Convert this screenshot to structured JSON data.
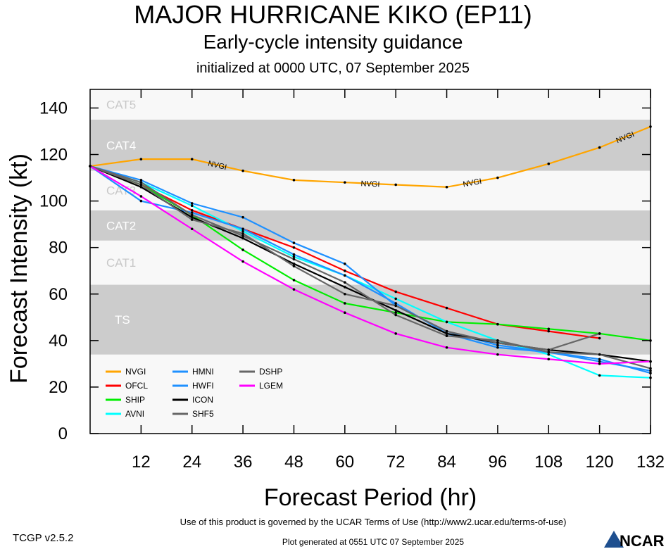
{
  "title": "MAJOR HURRICANE KIKO (EP11)",
  "subtitle": "Early-cycle intensity guidance",
  "init": "initialized at 0000 UTC, 07 September 2025",
  "footer": {
    "version": "TCGP v2.5.2",
    "terms": "Use of this product is governed by the UCAR Terms of Use (http://www2.ucar.edu/terms-of-use)",
    "generated": "Plot generated at 0551 UTC   07 September 2025",
    "logo": "NCAR"
  },
  "chart_data": {
    "type": "line",
    "xlabel": "Forecast Period (hr)",
    "ylabel": "Forecast Intensity (kt)",
    "xlim": [
      0,
      132
    ],
    "ylim": [
      0,
      148
    ],
    "xticks": [
      12,
      24,
      36,
      48,
      60,
      72,
      84,
      96,
      108,
      120,
      132
    ],
    "yticks": [
      0,
      20,
      40,
      60,
      80,
      100,
      120,
      140
    ],
    "bands": [
      {
        "label": "TS",
        "from": 34,
        "to": 64,
        "color": "#cccccc"
      },
      {
        "label": "CAT1",
        "from": 64,
        "to": 83,
        "color": "#f8f8f8"
      },
      {
        "label": "CAT2",
        "from": 83,
        "to": 96,
        "color": "#cccccc"
      },
      {
        "label": "CAT3",
        "from": 96,
        "to": 113,
        "color": "#f8f8f8"
      },
      {
        "label": "CAT4",
        "from": 113,
        "to": 135,
        "color": "#cccccc"
      },
      {
        "label": "CAT5",
        "from": 135,
        "to": 148,
        "color": "#f8f8f8"
      }
    ],
    "x": [
      0,
      12,
      24,
      36,
      48,
      60,
      72,
      84,
      96,
      108,
      120,
      132
    ],
    "series": [
      {
        "name": "NVGI",
        "color": "#ffa500",
        "values": [
          115,
          118,
          118,
          113,
          109,
          108,
          107,
          106,
          110,
          116,
          123,
          132
        ]
      },
      {
        "name": "OFCL",
        "color": "#ff0000",
        "values": [
          115,
          107,
          96,
          88,
          80,
          70,
          61,
          54,
          47,
          44,
          41,
          null
        ]
      },
      {
        "name": "SHIP",
        "color": "#00ee00",
        "values": [
          115,
          107,
          94,
          79,
          66,
          56,
          52,
          48,
          47,
          45,
          43,
          40
        ]
      },
      {
        "name": "AVNI",
        "color": "#00ffff",
        "values": [
          115,
          108,
          98,
          87,
          76,
          68,
          58,
          48,
          40,
          34,
          25,
          24
        ]
      },
      {
        "name": "HMNI",
        "color": "#1e90ff",
        "values": [
          115,
          109,
          99,
          93,
          82,
          73,
          55,
          44,
          38,
          35,
          31,
          27
        ]
      },
      {
        "name": "HWFI",
        "color": "#1e90ff",
        "values": [
          115,
          100,
          95,
          88,
          77,
          68,
          56,
          43,
          37,
          35,
          32,
          26
        ]
      },
      {
        "name": "ICON",
        "color": "#000000",
        "values": [
          115,
          106,
          93,
          84,
          73,
          63,
          53,
          43,
          39,
          36,
          34,
          31
        ]
      },
      {
        "name": "SHF5",
        "color": "#666666",
        "values": [
          115,
          108,
          94,
          85,
          75,
          65,
          51,
          42,
          40,
          35,
          34,
          28
        ]
      },
      {
        "name": "DSHP",
        "color": "#666666",
        "values": [
          115,
          107,
          92,
          86,
          72,
          60,
          55,
          44,
          39,
          36,
          43,
          null
        ]
      },
      {
        "name": "LGEM",
        "color": "#ff00ff",
        "values": [
          115,
          102,
          88,
          74,
          62,
          52,
          43,
          37,
          34,
          32,
          30,
          31
        ]
      }
    ]
  }
}
